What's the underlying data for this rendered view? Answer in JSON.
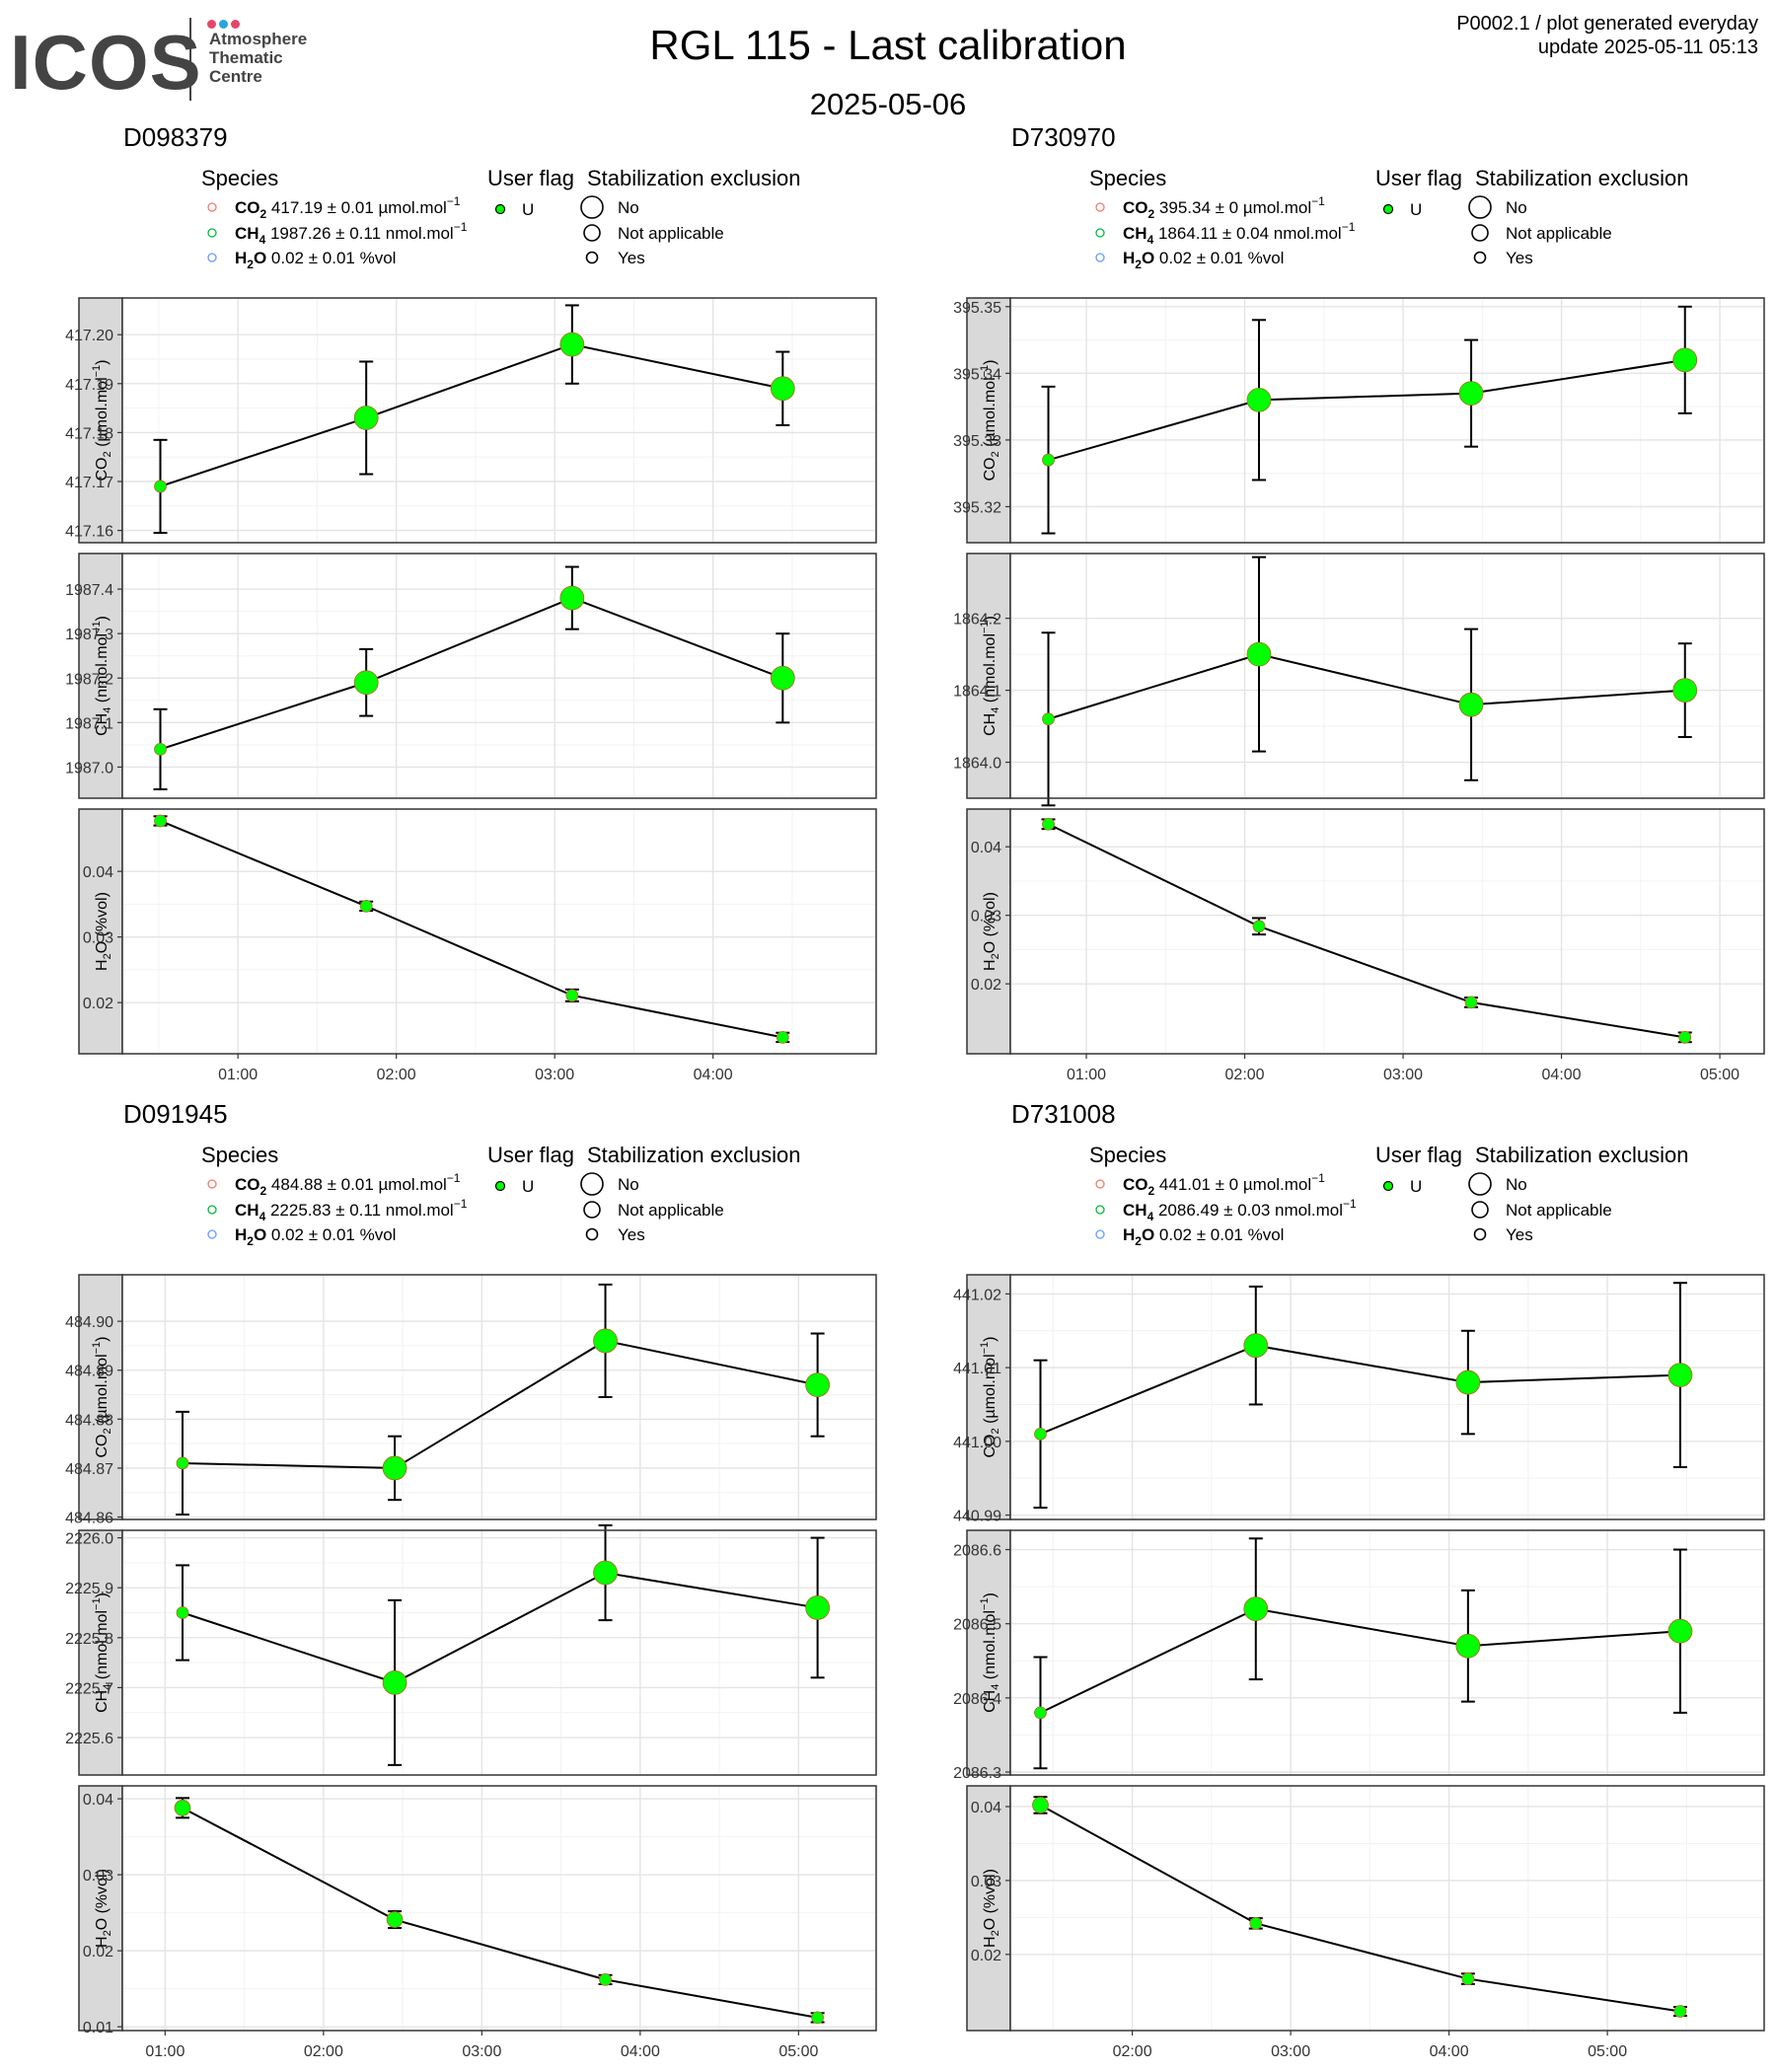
{
  "logo": {
    "wordmark": "ICOS",
    "lines": [
      "Atmosphere",
      "Thematic",
      "Centre"
    ],
    "dot_colors": [
      "#e6456b",
      "#2aa3e0",
      "#e6456b"
    ]
  },
  "header": {
    "title": "RGL 115 - Last calibration",
    "subtitle": "2025-05-06",
    "info_line1": "P0002.1 / plot generated everyday",
    "info_line2": "update  2025-05-11 05:13"
  },
  "colors": {
    "point_fill": "#00ff00",
    "legend_co2": "#f8766d",
    "legend_ch4": "#00ba38",
    "legend_h2o": "#619cff",
    "strip_fill": "#d9d9d9"
  },
  "legend": {
    "species_title": "Species",
    "user_flag_title": "User flag",
    "stab_title": "Stabilization exclusion",
    "user_flag_item": "U",
    "stab_items": [
      "No",
      "Not applicable",
      "Yes"
    ]
  },
  "chart_data": [
    {
      "type": "line",
      "title": "D098379",
      "legend": {
        "co2": {
          "label": "CO",
          "sub": "2",
          "value": " 417.19 ± 0.01 µmol.mol",
          "sup": "−1"
        },
        "ch4": {
          "label": "CH",
          "sub": "4",
          "value": " 1987.26 ± 0.11 nmol.mol",
          "sup": "−1"
        },
        "h2o": {
          "label": "H",
          "sub": "2",
          "label2": "O",
          "value": " 0.02 ± 0.01 %vol",
          "sup": ""
        }
      },
      "x_ticks": [
        "01:00",
        "02:00",
        "03:00",
        "04:00"
      ],
      "x_tick_hours": [
        1,
        2,
        3,
        4
      ],
      "x_range": [
        0.27,
        5.03
      ],
      "x": [
        0.51,
        1.81,
        3.11,
        4.44
      ],
      "panels": [
        {
          "ylabel": "CO",
          "ylabel_sub": "2",
          "ylabel_rest": " (µmol.mol",
          "ylabel_sup": "−1",
          "ylabel_end": ")",
          "yticks": [
            "417.16",
            "417.17",
            "417.18",
            "417.19",
            "417.20"
          ],
          "ytick_values": [
            417.16,
            417.17,
            417.18,
            417.19,
            417.2
          ],
          "ylim": [
            417.1575,
            417.2075
          ],
          "y": [
            417.169,
            417.183,
            417.198,
            417.189
          ],
          "err": [
            0.0095,
            0.0115,
            0.008,
            0.0075
          ],
          "size": [
            3,
            6,
            6,
            6
          ]
        },
        {
          "ylabel": "CH",
          "ylabel_sub": "4",
          "ylabel_rest": " (nmol.mol",
          "ylabel_sup": "−1",
          "ylabel_end": ")",
          "yticks": [
            "1987.0",
            "1987.1",
            "1987.2",
            "1987.3",
            "1987.4"
          ],
          "ytick_values": [
            1987.0,
            1987.1,
            1987.2,
            1987.3,
            1987.4
          ],
          "ylim": [
            1986.93,
            1987.48
          ],
          "y": [
            1987.04,
            1987.19,
            1987.38,
            1987.2
          ],
          "err": [
            0.09,
            0.075,
            0.07,
            0.1
          ],
          "size": [
            3,
            6,
            6,
            6
          ]
        },
        {
          "ylabel": "H",
          "ylabel_sub": "2",
          "ylabel_rest": "O (%vol)",
          "ylabel_sup": "",
          "ylabel_end": "",
          "yticks": [
            "0.02",
            "0.03",
            "0.04"
          ],
          "ytick_values": [
            0.02,
            0.03,
            0.04
          ],
          "ylim": [
            0.0122,
            0.0495
          ],
          "y": [
            0.0477,
            0.0347,
            0.0211,
            0.0147
          ],
          "err": [
            0.0007,
            0.0007,
            0.0009,
            0.0007
          ],
          "size": [
            3,
            3,
            3,
            3
          ]
        }
      ]
    },
    {
      "type": "line",
      "title": "D730970",
      "legend": {
        "co2": {
          "label": "CO",
          "sub": "2",
          "value": " 395.34 ± 0 µmol.mol",
          "sup": "−1"
        },
        "ch4": {
          "label": "CH",
          "sub": "4",
          "value": " 1864.11 ± 0.04 nmol.mol",
          "sup": "−1"
        },
        "h2o": {
          "label": "H",
          "sub": "2",
          "label2": "O",
          "value": " 0.02 ± 0.01 %vol",
          "sup": ""
        }
      },
      "x_ticks": [
        "01:00",
        "02:00",
        "03:00",
        "04:00",
        "05:00"
      ],
      "x_tick_hours": [
        1,
        2,
        3,
        4,
        5
      ],
      "x_range": [
        0.52,
        5.28
      ],
      "x": [
        0.76,
        2.09,
        3.43,
        4.78
      ],
      "panels": [
        {
          "ylabel": "CO",
          "ylabel_sub": "2",
          "ylabel_rest": " (µmol.mol",
          "ylabel_sup": "−1",
          "ylabel_end": ")",
          "yticks": [
            "395.32",
            "395.33",
            "395.34",
            "395.35"
          ],
          "ytick_values": [
            395.32,
            395.33,
            395.34,
            395.35
          ],
          "ylim": [
            395.3146,
            395.3513
          ],
          "y": [
            395.327,
            395.336,
            395.337,
            395.342
          ],
          "err": [
            0.011,
            0.012,
            0.008,
            0.008
          ],
          "size": [
            3,
            6,
            6,
            6
          ]
        },
        {
          "ylabel": "CH",
          "ylabel_sub": "4",
          "ylabel_rest": " (nmol.mol",
          "ylabel_sup": "−1",
          "ylabel_end": ")",
          "yticks": [
            "1864.0",
            "1864.1",
            "1864.2"
          ],
          "ytick_values": [
            1864.0,
            1864.1,
            1864.2
          ],
          "ylim": [
            1863.95,
            1864.29
          ],
          "y": [
            1864.06,
            1864.15,
            1864.08,
            1864.1
          ],
          "err": [
            0.12,
            0.135,
            0.105,
            0.065
          ],
          "size": [
            3,
            6,
            6,
            6
          ]
        },
        {
          "ylabel": "H",
          "ylabel_sub": "2",
          "ylabel_rest": "O (%vol)",
          "ylabel_sup": "",
          "ylabel_end": "",
          "yticks": [
            "0.02",
            "0.03",
            "0.04"
          ],
          "ytick_values": [
            0.02,
            0.03,
            0.04
          ],
          "ylim": [
            0.0098,
            0.0455
          ],
          "y": [
            0.0433,
            0.0284,
            0.0173,
            0.0122
          ],
          "err": [
            0.0007,
            0.0012,
            0.0007,
            0.0007
          ],
          "size": [
            3,
            3,
            3,
            3
          ]
        }
      ]
    },
    {
      "type": "line",
      "title": "D091945",
      "legend": {
        "co2": {
          "label": "CO",
          "sub": "2",
          "value": " 484.88 ± 0.01 µmol.mol",
          "sup": "−1"
        },
        "ch4": {
          "label": "CH",
          "sub": "4",
          "value": " 2225.83 ± 0.11 nmol.mol",
          "sup": "−1"
        },
        "h2o": {
          "label": "H",
          "sub": "2",
          "label2": "O",
          "value": " 0.02 ± 0.01 %vol",
          "sup": ""
        }
      },
      "x_ticks": [
        "01:00",
        "02:00",
        "03:00",
        "04:00",
        "05:00"
      ],
      "x_tick_hours": [
        1,
        2,
        3,
        4,
        5
      ],
      "x_range": [
        0.73,
        5.49
      ],
      "x": [
        1.11,
        2.45,
        3.78,
        5.12
      ],
      "panels": [
        {
          "ylabel": "CO",
          "ylabel_sub": "2",
          "ylabel_rest": " (µmol.mol",
          "ylabel_sup": "−1",
          "ylabel_end": ")",
          "yticks": [
            "484.86",
            "484.87",
            "484.88",
            "484.89",
            "484.90"
          ],
          "ytick_values": [
            484.86,
            484.87,
            484.88,
            484.89,
            484.9
          ],
          "ylim": [
            484.8595,
            484.9095
          ],
          "y": [
            484.871,
            484.87,
            484.896,
            484.887
          ],
          "err": [
            0.0105,
            0.0065,
            0.0115,
            0.0105
          ],
          "size": [
            3,
            6,
            6,
            6
          ]
        },
        {
          "ylabel": "CH",
          "ylabel_sub": "4",
          "ylabel_rest": " (nmol.mol",
          "ylabel_sup": "−1",
          "ylabel_end": ")",
          "yticks": [
            "2225.6",
            "2225.7",
            "2225.8",
            "2225.9",
            "2226.0"
          ],
          "ytick_values": [
            2225.6,
            2225.7,
            2225.8,
            2225.9,
            2226.0
          ],
          "ylim": [
            2225.525,
            2226.015
          ],
          "y": [
            2225.85,
            2225.71,
            2225.93,
            2225.86
          ],
          "err": [
            0.095,
            0.165,
            0.095,
            0.14
          ],
          "size": [
            3,
            6,
            6,
            6
          ]
        },
        {
          "ylabel": "H",
          "ylabel_sub": "2",
          "ylabel_rest": "O (%vol)",
          "ylabel_sup": "",
          "ylabel_end": "",
          "yticks": [
            "0.01",
            "0.02",
            "0.03",
            "0.04"
          ],
          "ytick_values": [
            0.01,
            0.02,
            0.03,
            0.04
          ],
          "ylim": [
            0.0095,
            0.0417
          ],
          "y": [
            0.0388,
            0.0241,
            0.0162,
            0.0112
          ],
          "err": [
            0.0013,
            0.0011,
            0.0006,
            0.0006
          ],
          "size": [
            4,
            4,
            3,
            3
          ]
        }
      ]
    },
    {
      "type": "line",
      "title": "D731008",
      "legend": {
        "co2": {
          "label": "CO",
          "sub": "2",
          "value": " 441.01 ± 0 µmol.mol",
          "sup": "−1"
        },
        "ch4": {
          "label": "CH",
          "sub": "4",
          "value": " 2086.49 ± 0.03 nmol.mol",
          "sup": "−1"
        },
        "h2o": {
          "label": "H",
          "sub": "2",
          "label2": "O",
          "value": " 0.02 ± 0.01 %vol",
          "sup": ""
        }
      },
      "x_ticks": [
        "02:00",
        "03:00",
        "04:00",
        "05:00"
      ],
      "x_tick_hours": [
        2,
        3,
        4,
        5
      ],
      "x_range": [
        1.23,
        5.99
      ],
      "x": [
        1.42,
        2.78,
        4.12,
        5.46
      ],
      "panels": [
        {
          "ylabel": "CO",
          "ylabel_sub": "2",
          "ylabel_rest": " (µmol.mol",
          "ylabel_sup": "−1",
          "ylabel_end": ")",
          "yticks": [
            "440.99",
            "441.00",
            "441.01",
            "441.02"
          ],
          "ytick_values": [
            440.99,
            441.0,
            441.01,
            441.02
          ],
          "ylim": [
            440.9894,
            441.0226
          ],
          "y": [
            441.001,
            441.013,
            441.008,
            441.009
          ],
          "err": [
            0.01,
            0.008,
            0.007,
            0.0125
          ],
          "size": [
            3,
            6,
            6,
            6
          ]
        },
        {
          "ylabel": "CH",
          "ylabel_sub": "4",
          "ylabel_rest": " (nmol.mol",
          "ylabel_sup": "−1",
          "ylabel_end": ")",
          "yticks": [
            "2086.3",
            "2086.4",
            "2086.5",
            "2086.6"
          ],
          "ytick_values": [
            2086.3,
            2086.4,
            2086.5,
            2086.6
          ],
          "ylim": [
            2086.296,
            2086.626
          ],
          "y": [
            2086.38,
            2086.52,
            2086.47,
            2086.49
          ],
          "err": [
            0.075,
            0.095,
            0.075,
            0.11
          ],
          "size": [
            3,
            6,
            6,
            6
          ]
        },
        {
          "ylabel": "H",
          "ylabel_sub": "2",
          "ylabel_rest": "O (%vol)",
          "ylabel_sup": "",
          "ylabel_end": "",
          "yticks": [
            "0.02",
            "0.03",
            "0.04"
          ],
          "ytick_values": [
            0.02,
            0.03,
            0.04
          ],
          "ylim": [
            0.0097,
            0.0428
          ],
          "y": [
            0.0402,
            0.0242,
            0.0167,
            0.0123
          ],
          "err": [
            0.0011,
            0.0007,
            0.0007,
            0.0006
          ],
          "size": [
            4,
            3,
            3,
            3
          ]
        }
      ]
    }
  ]
}
